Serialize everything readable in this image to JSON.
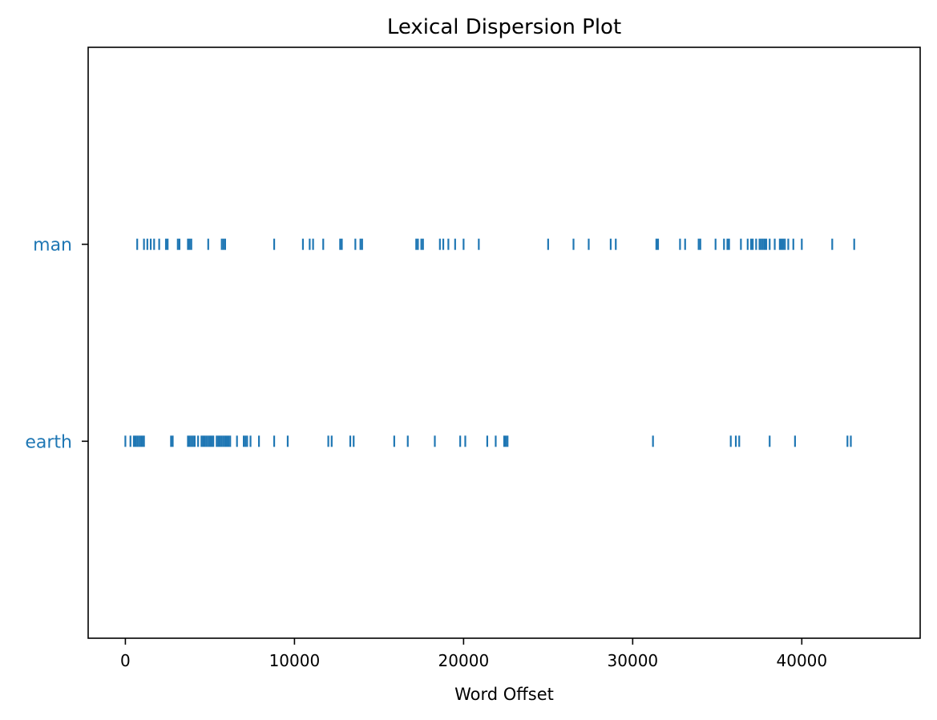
{
  "chart_data": {
    "type": "scatter",
    "title": "Lexical Dispersion Plot",
    "xlabel": "Word Offset",
    "ylabel": "",
    "xlim": [
      -2200,
      47000
    ],
    "x_ticks": [
      0,
      10000,
      20000,
      30000,
      40000
    ],
    "x_tick_labels": [
      "0",
      "10000",
      "20000",
      "30000",
      "40000"
    ],
    "grid": false,
    "legend": "none",
    "marker": "|",
    "color": "#1f77b4",
    "categories": [
      "man",
      "earth"
    ],
    "series": [
      {
        "name": "man",
        "x": [
          700,
          1100,
          1300,
          1500,
          1700,
          2000,
          2400,
          2500,
          3100,
          3200,
          3700,
          3800,
          3900,
          4900,
          5700,
          5800,
          5900,
          8800,
          10500,
          10900,
          11100,
          11700,
          12700,
          12800,
          13600,
          13900,
          14000,
          17200,
          17300,
          17500,
          17600,
          18600,
          18800,
          19100,
          19500,
          20000,
          20900,
          25000,
          26500,
          27400,
          28700,
          29000,
          31400,
          31500,
          32800,
          33100,
          33900,
          34000,
          34900,
          35400,
          35600,
          35700,
          36400,
          36800,
          37000,
          37100,
          37300,
          37500,
          37600,
          37700,
          37800,
          37900,
          38100,
          38400,
          38700,
          38800,
          38900,
          39000,
          39200,
          39500,
          40000,
          41800,
          43100
        ]
      },
      {
        "name": "earth",
        "x": [
          0,
          300,
          500,
          600,
          700,
          800,
          900,
          1000,
          1100,
          2700,
          2800,
          3700,
          3800,
          3900,
          4000,
          4100,
          4300,
          4500,
          4600,
          4700,
          4800,
          4900,
          5000,
          5100,
          5200,
          5400,
          5500,
          5600,
          5700,
          5800,
          5900,
          6000,
          6100,
          6200,
          6600,
          7000,
          7100,
          7200,
          7400,
          7900,
          8800,
          9600,
          12000,
          12200,
          13300,
          13500,
          15900,
          16700,
          18300,
          19800,
          20100,
          21400,
          21900,
          22400,
          22500,
          22600,
          31200,
          35800,
          36100,
          36300,
          38100,
          39600,
          42700,
          42900
        ]
      }
    ]
  }
}
